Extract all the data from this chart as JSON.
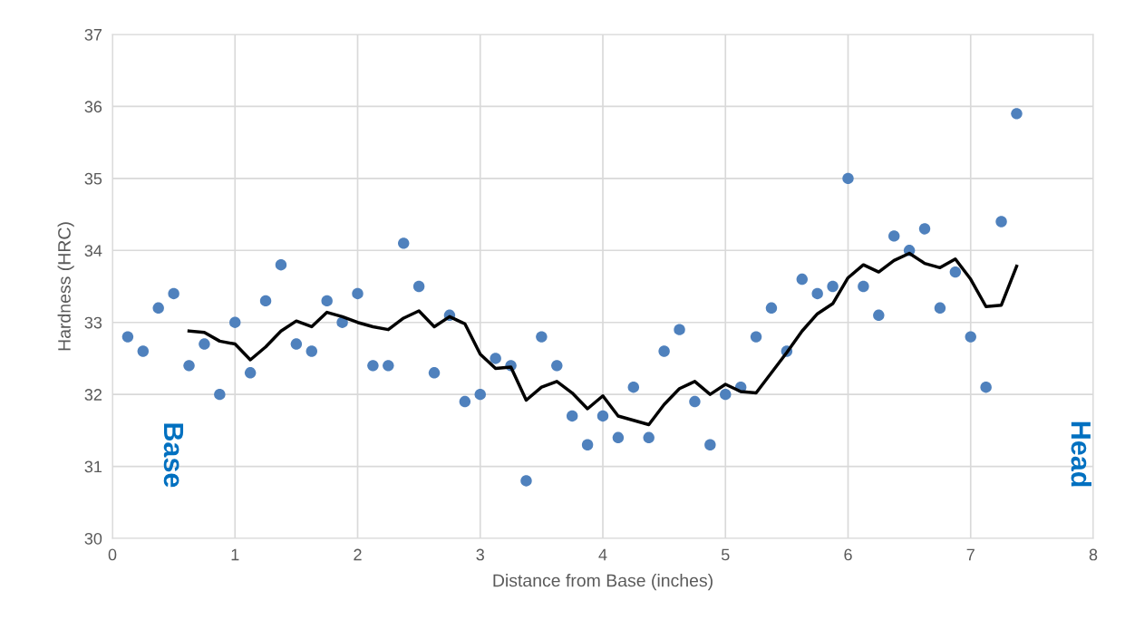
{
  "chart_data": {
    "type": "scatter",
    "xlabel": "Distance from Base (inches)",
    "ylabel": "Hardness (HRC)",
    "xlim": [
      0,
      8
    ],
    "xticks": [
      0,
      1,
      2,
      3,
      4,
      5,
      6,
      7,
      8
    ],
    "ylim": [
      30,
      37
    ],
    "yticks": [
      30,
      31,
      32,
      33,
      34,
      35,
      36,
      37
    ],
    "grid": true,
    "annotations": [
      "Base",
      "Head"
    ],
    "series": [
      {
        "color": "#4f81bd",
        "marker": "circle",
        "x": [
          0.125,
          0.25,
          0.375,
          0.5,
          0.625,
          0.75,
          0.875,
          1.0,
          1.125,
          1.25,
          1.375,
          1.5,
          1.625,
          1.75,
          1.875,
          2.0,
          2.125,
          2.25,
          2.375,
          2.5,
          2.625,
          2.75,
          2.875,
          3.0,
          3.125,
          3.25,
          3.375,
          3.5,
          3.625,
          3.75,
          3.875,
          4.0,
          4.125,
          4.25,
          4.375,
          4.5,
          4.625,
          4.75,
          4.875,
          5.0,
          5.125,
          5.25,
          5.375,
          5.5,
          5.625,
          5.75,
          5.875,
          6.0,
          6.125,
          6.25,
          6.375,
          6.5,
          6.625,
          6.75,
          6.875,
          7.0,
          7.125,
          7.25,
          7.375
        ],
        "values": [
          32.8,
          32.6,
          33.2,
          33.4,
          32.4,
          32.7,
          32.0,
          33.0,
          32.3,
          33.3,
          33.8,
          32.7,
          32.6,
          33.3,
          33.0,
          33.4,
          32.4,
          32.4,
          34.1,
          33.5,
          32.3,
          33.1,
          31.9,
          32.0,
          32.5,
          32.4,
          30.8,
          32.8,
          32.4,
          31.7,
          31.3,
          31.7,
          31.4,
          32.1,
          31.4,
          32.6,
          32.9,
          31.9,
          31.3,
          32.0,
          32.1,
          32.8,
          33.2,
          32.6,
          33.6,
          33.4,
          33.5,
          35.0,
          33.5,
          33.1,
          34.2,
          34.0,
          34.3,
          33.2,
          33.7,
          32.8,
          32.1,
          34.4,
          35.9
        ]
      },
      {
        "type": "line",
        "color": "#000000",
        "marker": "none",
        "line_style": "solid",
        "x": [
          0.625,
          0.75,
          0.875,
          1.0,
          1.125,
          1.25,
          1.375,
          1.5,
          1.625,
          1.75,
          1.875,
          2.0,
          2.125,
          2.25,
          2.375,
          2.5,
          2.625,
          2.75,
          2.875,
          3.0,
          3.125,
          3.25,
          3.375,
          3.5,
          3.625,
          3.75,
          3.875,
          4.0,
          4.125,
          4.25,
          4.375,
          4.5,
          4.625,
          4.75,
          4.875,
          5.0,
          5.125,
          5.25,
          5.375,
          5.5,
          5.625,
          5.75,
          5.875,
          6.0,
          6.125,
          6.25,
          6.375,
          6.5,
          6.625,
          6.75,
          6.875,
          7.0,
          7.125,
          7.25,
          7.375
        ],
        "values": [
          32.88,
          32.86,
          32.74,
          32.7,
          32.48,
          32.66,
          32.88,
          33.02,
          32.94,
          33.14,
          33.08,
          33.0,
          32.94,
          32.9,
          33.06,
          33.16,
          32.94,
          33.08,
          32.98,
          32.56,
          32.36,
          32.38,
          31.92,
          32.1,
          32.18,
          32.02,
          31.8,
          31.98,
          31.7,
          31.64,
          31.58,
          31.86,
          32.08,
          32.18,
          32.0,
          32.14,
          32.04,
          32.02,
          32.3,
          32.58,
          32.88,
          33.12,
          33.26,
          33.62,
          33.8,
          33.7,
          33.86,
          33.96,
          33.82,
          33.76,
          33.88,
          33.6,
          33.22,
          33.24,
          33.78
        ]
      }
    ]
  }
}
